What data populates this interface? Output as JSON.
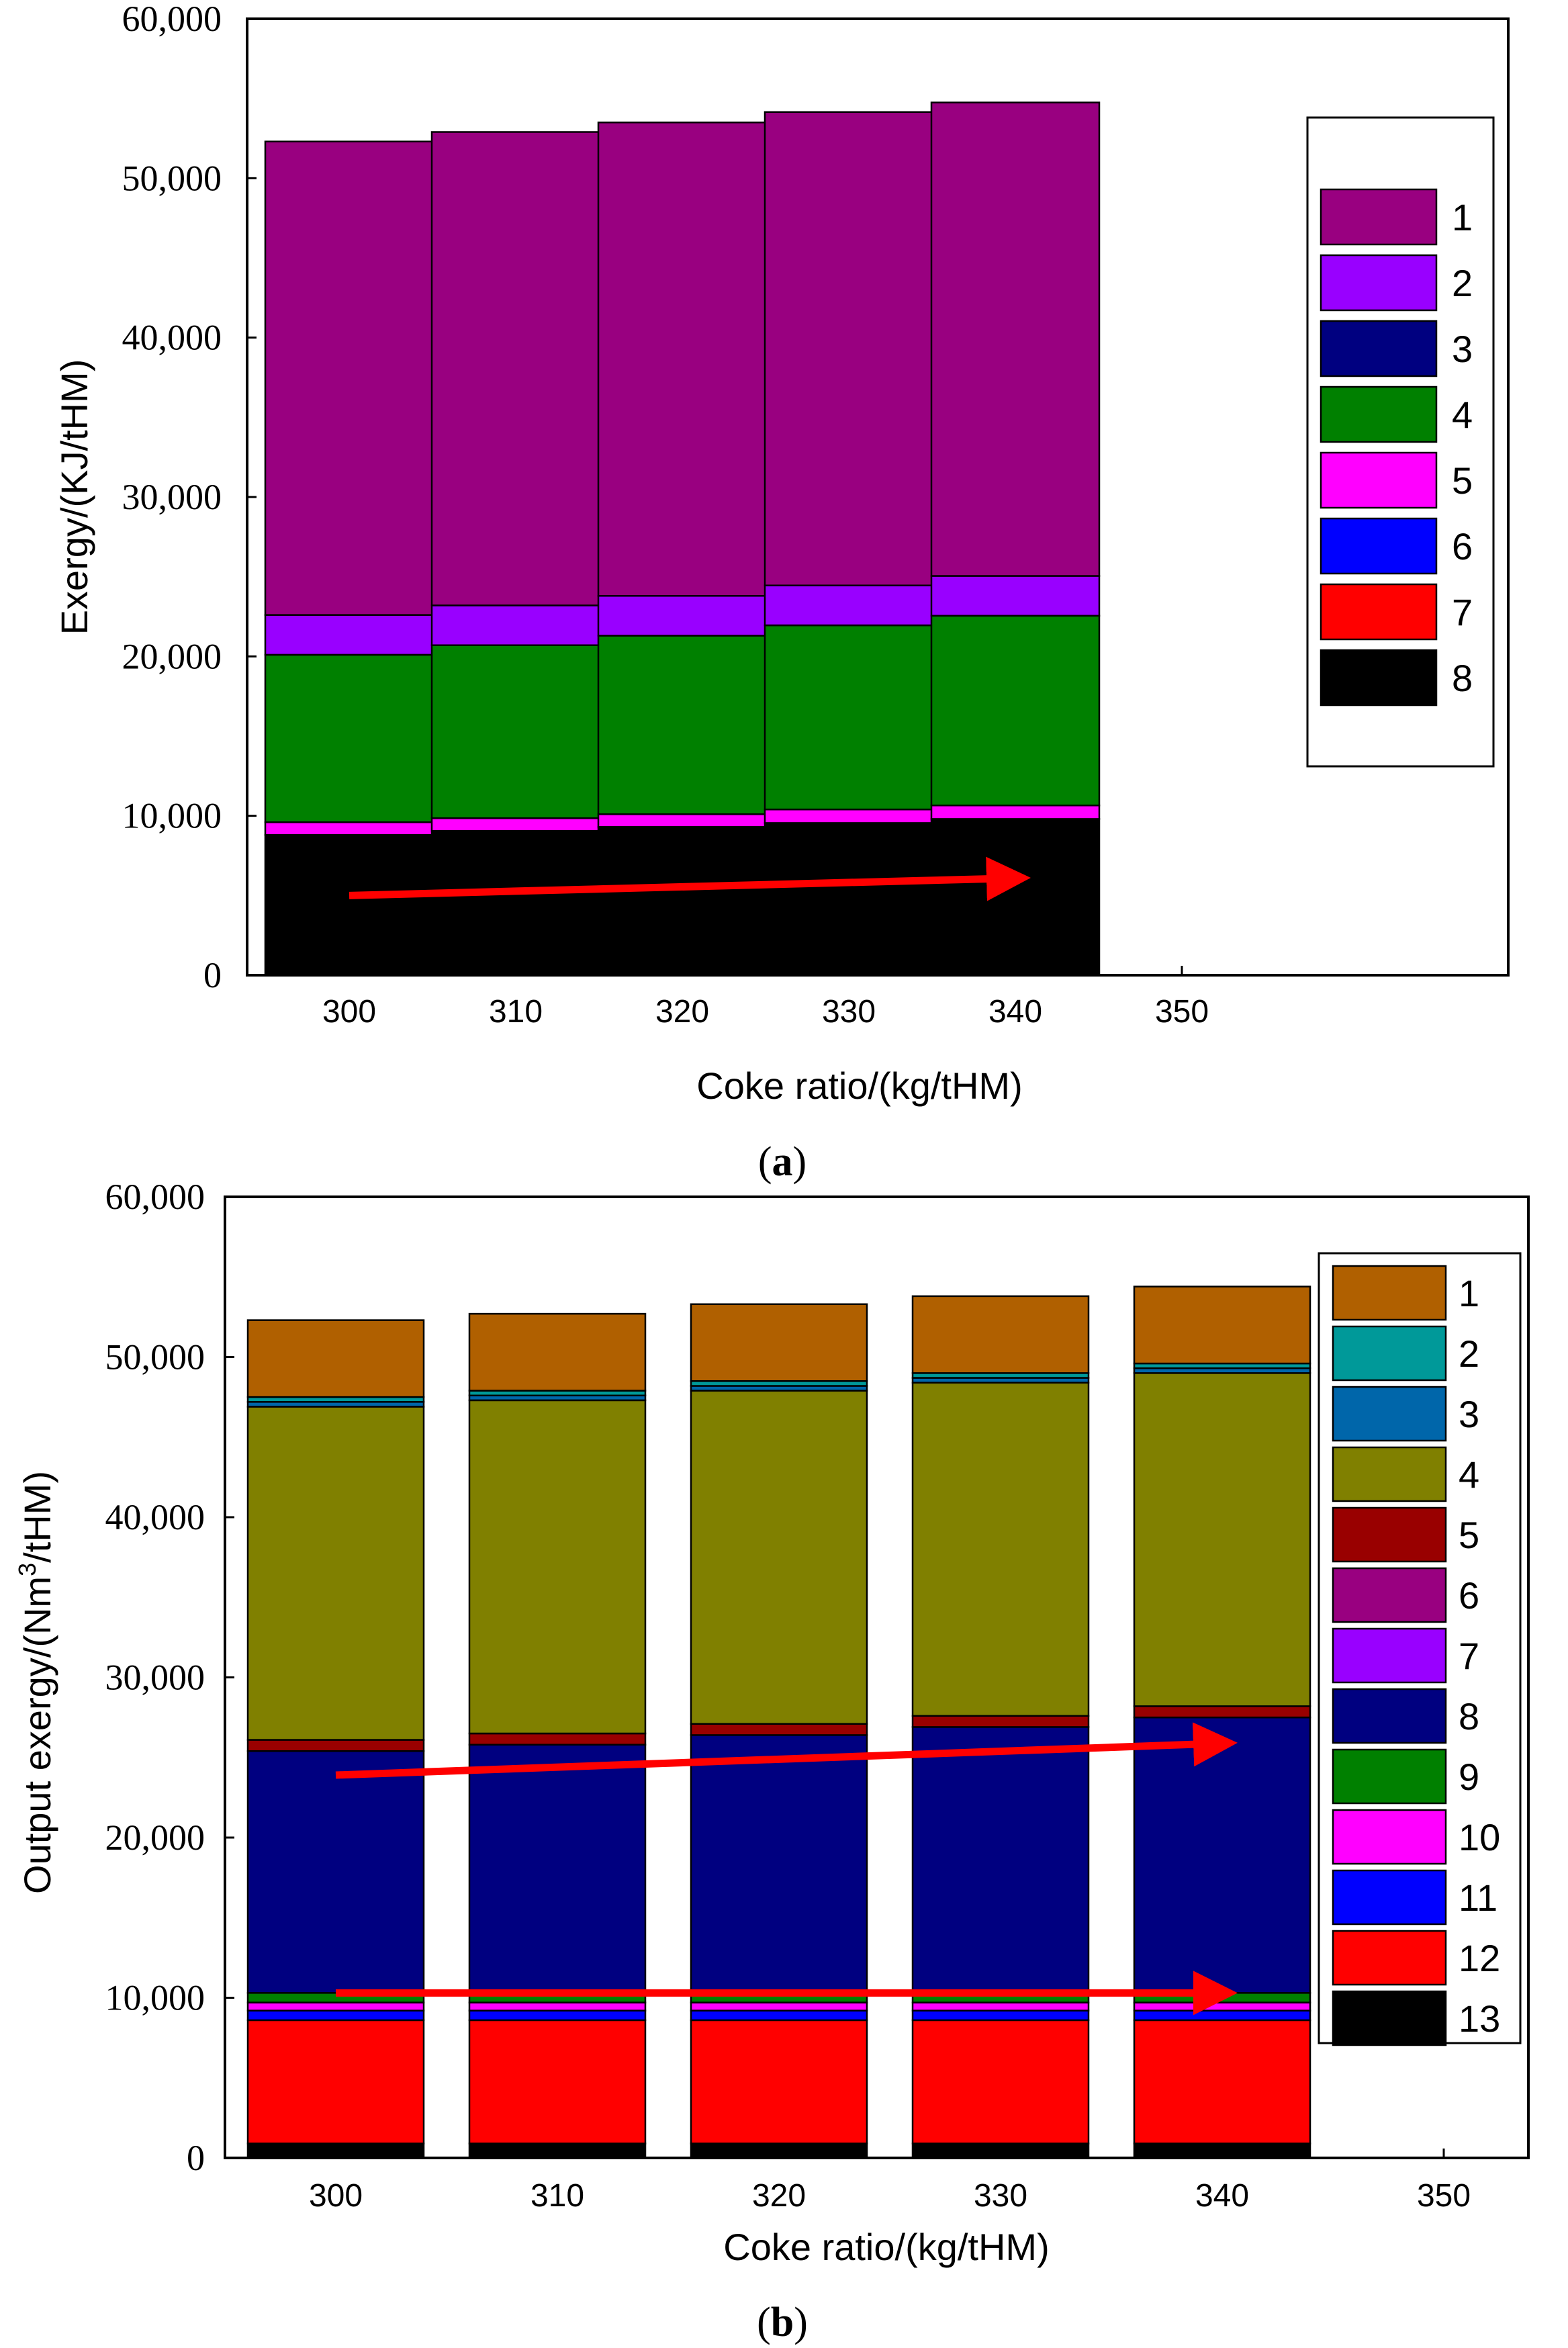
{
  "chart_data": [
    {
      "id": "a",
      "type": "bar",
      "stacked": true,
      "caption": "a",
      "xlabel": "Coke ratio/(kg/tHM)",
      "ylabel": "Exergy/(KJ/tHM)",
      "x_ticks": [
        "300",
        "310",
        "320",
        "330",
        "340",
        "350"
      ],
      "categories": [
        "300",
        "310",
        "320",
        "330",
        "340"
      ],
      "ylim": [
        0,
        60000
      ],
      "y_ticks": [
        0,
        10000,
        20000,
        30000,
        40000,
        50000,
        60000
      ],
      "y_tick_labels": [
        "0",
        "10,000",
        "20,000",
        "30,000",
        "40,000",
        "50,000",
        "60,000"
      ],
      "legend_position": "right",
      "series": [
        {
          "name": "8",
          "color": "#000000",
          "values": [
            8800,
            9050,
            9300,
            9550,
            9800
          ]
        },
        {
          "name": "7",
          "color": "#ff0000",
          "values": [
            0,
            0,
            0,
            0,
            0
          ]
        },
        {
          "name": "6",
          "color": "#0000ff",
          "values": [
            0,
            0,
            0,
            0,
            0
          ]
        },
        {
          "name": "5",
          "color": "#ff00ff",
          "values": [
            800,
            800,
            800,
            850,
            850
          ]
        },
        {
          "name": "4",
          "color": "#008000",
          "values": [
            10500,
            10850,
            11200,
            11550,
            11900
          ]
        },
        {
          "name": "3",
          "color": "#000080",
          "values": [
            0,
            0,
            0,
            0,
            0
          ]
        },
        {
          "name": "2",
          "color": "#9900ff",
          "values": [
            2500,
            2500,
            2500,
            2500,
            2500
          ]
        },
        {
          "name": "1",
          "color": "#990080",
          "values": [
            29700,
            29700,
            29700,
            29700,
            29700
          ]
        }
      ],
      "legend_order": [
        "1",
        "2",
        "3",
        "4",
        "5",
        "6",
        "7",
        "8"
      ],
      "trend_arrows": [
        {
          "color": "#ff0000",
          "from": [
            300,
            5000
          ],
          "to": [
            340,
            6100
          ]
        }
      ]
    },
    {
      "id": "b",
      "type": "bar",
      "stacked": true,
      "caption": "b",
      "xlabel": "Coke ratio/(kg/tHM)",
      "ylabel_main": "Output  exergy/(Nm",
      "ylabel_sup": "3",
      "ylabel_tail": "/tHM)",
      "x_ticks": [
        "300",
        "310",
        "320",
        "330",
        "340",
        "350"
      ],
      "categories": [
        "300",
        "310",
        "320",
        "330",
        "340"
      ],
      "ylim": [
        0,
        60000
      ],
      "y_ticks": [
        0,
        10000,
        20000,
        30000,
        40000,
        50000,
        60000
      ],
      "y_tick_labels": [
        "0",
        "10,000",
        "20,000",
        "30,000",
        "40,000",
        "50,000",
        "60,000"
      ],
      "legend_position": "right",
      "series": [
        {
          "name": "13",
          "color": "#000000",
          "values": [
            900,
            900,
            900,
            900,
            900
          ]
        },
        {
          "name": "12",
          "color": "#ff0000",
          "values": [
            7700,
            7700,
            7700,
            7700,
            7700
          ]
        },
        {
          "name": "11",
          "color": "#0000ff",
          "values": [
            600,
            600,
            600,
            600,
            600
          ]
        },
        {
          "name": "10",
          "color": "#ff00ff",
          "values": [
            500,
            500,
            500,
            500,
            500
          ]
        },
        {
          "name": "9",
          "color": "#008000",
          "values": [
            600,
            600,
            600,
            600,
            600
          ]
        },
        {
          "name": "8",
          "color": "#000080",
          "values": [
            15100,
            15500,
            16100,
            16600,
            17200
          ]
        },
        {
          "name": "7",
          "color": "#9900ff",
          "values": [
            0,
            0,
            0,
            0,
            0
          ]
        },
        {
          "name": "6",
          "color": "#990080",
          "values": [
            0,
            0,
            0,
            0,
            0
          ]
        },
        {
          "name": "5",
          "color": "#990000",
          "values": [
            700,
            700,
            700,
            700,
            700
          ]
        },
        {
          "name": "4",
          "color": "#808000",
          "values": [
            20800,
            20800,
            20800,
            20800,
            20800
          ]
        },
        {
          "name": "3",
          "color": "#0066aa",
          "values": [
            300,
            300,
            300,
            300,
            300
          ]
        },
        {
          "name": "2",
          "color": "#009999",
          "values": [
            300,
            300,
            300,
            300,
            300
          ]
        },
        {
          "name": "1",
          "color": "#b06000",
          "values": [
            4800,
            4800,
            4800,
            4800,
            4800
          ]
        }
      ],
      "legend_order": [
        "1",
        "2",
        "3",
        "4",
        "5",
        "6",
        "7",
        "8",
        "9",
        "10",
        "11",
        "12",
        "13"
      ],
      "trend_arrows": [
        {
          "color": "#ff0000",
          "from": [
            300,
            23900
          ],
          "to": [
            340,
            25900
          ]
        },
        {
          "color": "#ff0000",
          "from": [
            300,
            10300
          ],
          "to": [
            340,
            10300
          ]
        }
      ]
    }
  ]
}
